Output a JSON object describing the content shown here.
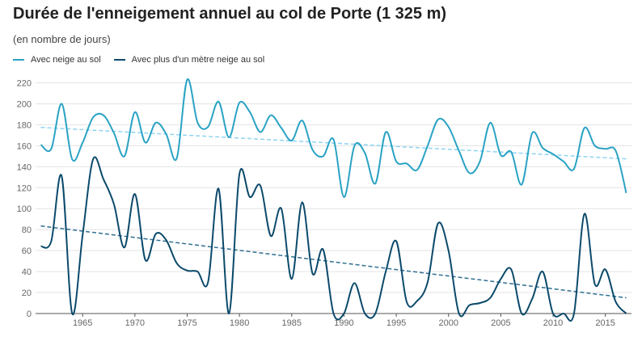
{
  "chart_data": {
    "type": "line",
    "title": "Durée de l'enneigement annuel au col de Porte (1 325 m)",
    "subtitle": "(en nombre de jours)",
    "xlabel": "",
    "ylabel": "",
    "xlim": [
      1960.5,
      2017.5
    ],
    "ylim": [
      0,
      225
    ],
    "x_ticks": [
      1965,
      1970,
      1975,
      1980,
      1985,
      1990,
      1995,
      2000,
      2005,
      2010,
      2015
    ],
    "y_ticks": [
      0,
      20,
      40,
      60,
      80,
      100,
      120,
      140,
      160,
      180,
      200,
      220
    ],
    "grid": true,
    "legend_position": "top-left",
    "x": [
      1961,
      1962,
      1963,
      1964,
      1965,
      1966,
      1967,
      1968,
      1969,
      1970,
      1971,
      1972,
      1973,
      1974,
      1975,
      1976,
      1977,
      1978,
      1979,
      1980,
      1981,
      1982,
      1983,
      1984,
      1985,
      1986,
      1987,
      1988,
      1989,
      1990,
      1991,
      1992,
      1993,
      1994,
      1995,
      1996,
      1997,
      1998,
      1999,
      2000,
      2001,
      2002,
      2003,
      2004,
      2005,
      2006,
      2007,
      2008,
      2009,
      2010,
      2011,
      2012,
      2013,
      2014,
      2015,
      2016,
      2017
    ],
    "series": [
      {
        "name": "Avec neige au sol",
        "color": "#2aa3c4",
        "values": [
          161,
          157,
          200,
          147,
          163,
          187,
          189,
          172,
          150,
          192,
          163,
          182,
          171,
          148,
          223,
          182,
          178,
          202,
          168,
          201,
          192,
          173,
          189,
          177,
          165,
          184,
          156,
          150,
          166,
          111,
          160,
          153,
          124,
          173,
          145,
          143,
          137,
          160,
          185,
          178,
          155,
          134,
          145,
          182,
          151,
          154,
          123,
          172,
          158,
          152,
          145,
          138,
          177,
          160,
          157,
          155,
          115
        ],
        "trend": [
          177.5,
          147.5
        ]
      },
      {
        "name": "Avec plus d'un mètre neige au sol",
        "color": "#0b4a6b",
        "values": [
          64,
          69,
          131,
          0,
          75,
          147,
          128,
          104,
          63,
          114,
          51,
          76,
          70,
          48,
          41,
          40,
          30,
          119,
          0,
          133,
          111,
          122,
          74,
          100,
          33,
          106,
          38,
          61,
          0,
          0,
          29,
          0,
          0,
          40,
          69,
          11,
          12,
          30,
          86,
          60,
          0,
          8,
          10,
          15,
          33,
          42,
          0,
          14,
          40,
          0,
          0,
          0,
          95,
          28,
          42,
          11,
          0
        ],
        "trend": [
          83.5,
          15
        ]
      }
    ]
  }
}
